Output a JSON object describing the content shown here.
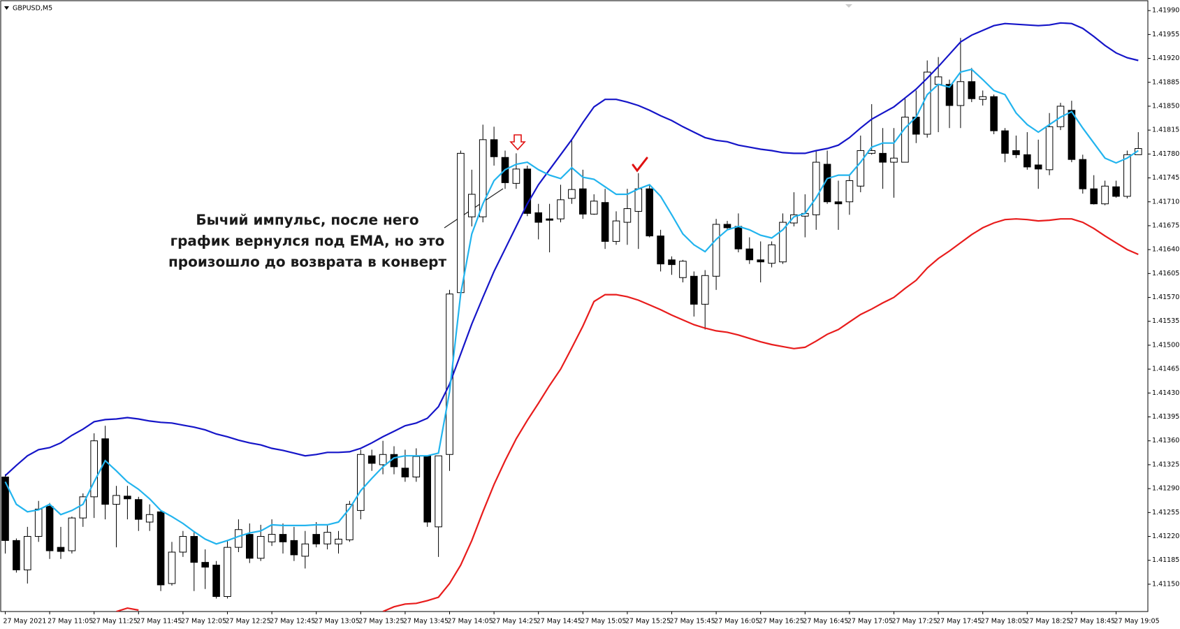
{
  "chart_data": {
    "type": "candlestick",
    "title": "GBPUSD,M5",
    "annotation": [
      "Бычий импульс, после него",
      "график вернулся под EMA, но это",
      "произошло до возврата в конверт"
    ],
    "up_color": "#ffffff",
    "down_color": "#000000",
    "categories": [
      "27 May 2021",
      null,
      null,
      null,
      "27 May 11:05",
      null,
      null,
      null,
      "27 May 11:25",
      null,
      null,
      null,
      "27 May 11:45",
      null,
      null,
      null,
      "27 May 12:05",
      null,
      null,
      null,
      "27 May 12:25",
      null,
      null,
      null,
      "27 May 12:45",
      null,
      null,
      null,
      "27 May 13:05",
      null,
      null,
      null,
      "27 May 13:25",
      null,
      null,
      null,
      "27 May 13:45",
      null,
      null,
      null,
      "27 May 14:05",
      null,
      null,
      null,
      "27 May 14:25",
      null,
      null,
      null,
      "27 May 14:45",
      null,
      null,
      null,
      "27 May 15:05",
      null,
      null,
      null,
      "27 May 15:25",
      null,
      null,
      null,
      "27 May 15:45",
      null,
      null,
      null,
      "27 May 16:05",
      null,
      null,
      null,
      "27 May 16:25",
      null,
      null,
      null,
      "27 May 16:45",
      null,
      null,
      null,
      "27 May 17:05",
      null,
      null,
      null,
      "27 May 17:25",
      null,
      null,
      null,
      "27 May 17:45",
      null,
      null,
      null,
      "27 May 18:05",
      null,
      null,
      null,
      "27 May 18:25",
      null,
      null,
      null,
      "27 May 18:45",
      null,
      null,
      null,
      "27 May 19:05",
      null,
      null
    ],
    "open": [
      1.41307,
      1.41214,
      1.41171,
      1.4122,
      1.41264,
      1.41204,
      1.41199,
      1.41247,
      1.41278,
      1.41363,
      1.41267,
      1.41279,
      1.41274,
      1.41241,
      1.41256,
      1.41151,
      1.41197,
      1.4122,
      1.41182,
      1.41178,
      1.41132,
      1.41204,
      1.41223,
      1.41188,
      1.41212,
      1.41223,
      1.41214,
      1.41191,
      1.41223,
      1.41209,
      1.41209,
      1.41215,
      1.41258,
      1.41338,
      1.41325,
      1.4134,
      1.4132,
      1.41307,
      1.41338,
      1.41234,
      1.4134,
      1.41577,
      1.41688,
      1.41688,
      1.41801,
      1.41775,
      1.41737,
      1.41758,
      1.41694,
      1.41685,
      1.41685,
      1.41715,
      1.41729,
      1.41692,
      1.41709,
      1.41652,
      1.4168,
      1.41696,
      1.41729,
      1.4166,
      1.41625,
      1.41599,
      1.41601,
      1.4156,
      1.41601,
      1.41677,
      1.41674,
      1.41641,
      1.41625,
      1.4162,
      1.41622,
      1.41679,
      1.41689,
      1.41691,
      1.41765,
      1.4171,
      1.4171,
      1.41733,
      1.41781,
      1.41781,
      1.41768,
      1.41768,
      1.41834,
      1.41809,
      1.41882,
      1.41882,
      1.41851,
      1.41886,
      1.4186,
      1.41864,
      1.41814,
      1.41785,
      1.41779,
      1.41764,
      1.41757,
      1.4182,
      1.41844,
      1.41772,
      1.41729,
      1.41707,
      1.41732,
      1.41718,
      1.41779
    ],
    "high": [
      1.41311,
      1.41217,
      1.41234,
      1.41272,
      1.41269,
      1.41234,
      1.41249,
      1.41283,
      1.41371,
      1.41382,
      1.41294,
      1.41294,
      1.41278,
      1.41267,
      1.41258,
      1.41212,
      1.41228,
      1.41228,
      1.41201,
      1.41184,
      1.41214,
      1.41245,
      1.41239,
      1.41237,
      1.41245,
      1.41239,
      1.41234,
      1.41228,
      1.41241,
      1.41236,
      1.41228,
      1.41272,
      1.41347,
      1.41347,
      1.4136,
      1.41352,
      1.41347,
      1.41349,
      1.41338,
      1.41338,
      1.41581,
      1.41785,
      1.41757,
      1.41823,
      1.4182,
      1.41785,
      1.41781,
      1.41763,
      1.41707,
      1.41707,
      1.41735,
      1.41801,
      1.41757,
      1.41721,
      1.41729,
      1.41696,
      1.41729,
      1.41752,
      1.41735,
      1.41669,
      1.4163,
      1.41625,
      1.41608,
      1.4161,
      1.41685,
      1.41682,
      1.41693,
      1.41658,
      1.41652,
      1.41652,
      1.41693,
      1.41724,
      1.41721,
      1.41785,
      1.41785,
      1.41741,
      1.41749,
      1.41807,
      1.41853,
      1.41818,
      1.41818,
      1.41862,
      1.41873,
      1.41917,
      1.41922,
      1.41889,
      1.4195,
      1.41906,
      1.41873,
      1.41867,
      1.41818,
      1.41807,
      1.41812,
      1.41801,
      1.4184,
      1.41855,
      1.41858,
      1.41779,
      1.41749,
      1.41741,
      1.41741,
      1.41785,
      1.41812
    ],
    "low": [
      1.41195,
      1.41167,
      1.41151,
      1.41212,
      1.41187,
      1.41187,
      1.41195,
      1.41234,
      1.41247,
      1.41245,
      1.41204,
      1.41245,
      1.41228,
      1.41228,
      1.4114,
      1.41148,
      1.4119,
      1.4114,
      1.41143,
      1.41129,
      1.41129,
      1.41197,
      1.41181,
      1.41184,
      1.41206,
      1.41195,
      1.41184,
      1.41173,
      1.41204,
      1.41201,
      1.41195,
      1.41212,
      1.41245,
      1.41316,
      1.41311,
      1.41311,
      1.413,
      1.413,
      1.41234,
      1.4119,
      1.41316,
      1.4157,
      1.41674,
      1.4168,
      1.41763,
      1.41729,
      1.41729,
      1.41689,
      1.41655,
      1.41636,
      1.4168,
      1.41707,
      1.41685,
      1.41691,
      1.41641,
      1.41647,
      1.41647,
      1.41641,
      1.41658,
      1.41608,
      1.41603,
      1.41592,
      1.41542,
      1.41523,
      1.41581,
      1.41669,
      1.41636,
      1.41619,
      1.41592,
      1.41614,
      1.41619,
      1.41674,
      1.41658,
      1.41669,
      1.41707,
      1.41669,
      1.41691,
      1.41724,
      1.41779,
      1.41729,
      1.41716,
      1.41768,
      1.41796,
      1.41804,
      1.41812,
      1.41818,
      1.41818,
      1.41856,
      1.41851,
      1.41809,
      1.41768,
      1.41774,
      1.41757,
      1.41729,
      1.41749,
      1.41815,
      1.41768,
      1.41722,
      1.41706,
      1.41705,
      1.41716,
      1.41715,
      1.41779
    ],
    "close": [
      1.41214,
      1.41171,
      1.4122,
      1.4126,
      1.41199,
      1.41198,
      1.41247,
      1.41278,
      1.4136,
      1.41267,
      1.4128,
      1.41275,
      1.41245,
      1.41252,
      1.41149,
      1.41197,
      1.4122,
      1.41182,
      1.41175,
      1.41132,
      1.41204,
      1.4123,
      1.41188,
      1.4122,
      1.41223,
      1.41212,
      1.41193,
      1.41209,
      1.41209,
      1.41226,
      1.41216,
      1.41267,
      1.4134,
      1.41327,
      1.4134,
      1.41322,
      1.41307,
      1.41337,
      1.41241,
      1.41338,
      1.41575,
      1.41781,
      1.41721,
      1.41801,
      1.41776,
      1.41738,
      1.41758,
      1.41693,
      1.4168,
      1.41683,
      1.41713,
      1.41728,
      1.41692,
      1.41711,
      1.41652,
      1.41682,
      1.417,
      1.41729,
      1.4166,
      1.41619,
      1.41618,
      1.41623,
      1.4156,
      1.41602,
      1.41677,
      1.41672,
      1.41641,
      1.41625,
      1.41622,
      1.41647,
      1.4168,
      1.41691,
      1.41693,
      1.41768,
      1.4171,
      1.41707,
      1.41741,
      1.41785,
      1.41785,
      1.41768,
      1.41774,
      1.41834,
      1.41809,
      1.419,
      1.41893,
      1.41851,
      1.41886,
      1.41861,
      1.41864,
      1.41814,
      1.41781,
      1.41779,
      1.41761,
      1.41758,
      1.4182,
      1.4185,
      1.41772,
      1.41729,
      1.41707,
      1.41733,
      1.41718,
      1.41779,
      1.41788
    ],
    "lines": [
      {
        "color": "#1515c8",
        "values": [
          1.41309,
          1.41324,
          1.41338,
          1.41347,
          1.4135,
          1.41357,
          1.41368,
          1.41377,
          1.41388,
          1.41391,
          1.41392,
          1.41394,
          1.41392,
          1.41389,
          1.41387,
          1.41386,
          1.41383,
          1.4138,
          1.41376,
          1.4137,
          1.41366,
          1.41361,
          1.41357,
          1.41354,
          1.41349,
          1.41346,
          1.41342,
          1.41338,
          1.4134,
          1.41343,
          1.41343,
          1.41344,
          1.41349,
          1.41357,
          1.41366,
          1.41374,
          1.41382,
          1.41386,
          1.41393,
          1.4141,
          1.41443,
          1.41487,
          1.41531,
          1.4157,
          1.41608,
          1.41641,
          1.41674,
          1.41707,
          1.41735,
          1.41757,
          1.41779,
          1.41801,
          1.41826,
          1.41849,
          1.4186,
          1.4186,
          1.41856,
          1.41851,
          1.41844,
          1.41836,
          1.41829,
          1.4182,
          1.41812,
          1.41804,
          1.418,
          1.41798,
          1.41793,
          1.4179,
          1.41787,
          1.41785,
          1.41782,
          1.41781,
          1.41781,
          1.41785,
          1.41788,
          1.41793,
          1.41804,
          1.41818,
          1.41831,
          1.4184,
          1.41849,
          1.41862,
          1.41875,
          1.41891,
          1.41908,
          1.41926,
          1.41944,
          1.41954,
          1.41961,
          1.41968,
          1.41971,
          1.4197,
          1.41969,
          1.41968,
          1.41969,
          1.41972,
          1.41971,
          1.41964,
          1.41952,
          1.41939,
          1.41928,
          1.41921,
          1.41917
        ]
      },
      {
        "color": "#e81c1c",
        "values": [
          null,
          null,
          null,
          null,
          null,
          null,
          null,
          null,
          null,
          null,
          1.4111,
          1.41115,
          1.41112,
          null,
          null,
          null,
          null,
          null,
          null,
          null,
          null,
          null,
          null,
          null,
          null,
          null,
          null,
          null,
          null,
          null,
          null,
          null,
          null,
          null,
          1.4111,
          1.41117,
          1.41121,
          1.41122,
          1.41126,
          1.41131,
          1.41151,
          1.41178,
          1.41214,
          1.41256,
          1.41296,
          1.41331,
          1.41363,
          1.4139,
          1.41415,
          1.41441,
          1.41465,
          1.41496,
          1.41528,
          1.41564,
          1.41574,
          1.41574,
          1.41571,
          1.41566,
          1.41559,
          1.41552,
          1.41544,
          1.41537,
          1.4153,
          1.41525,
          1.41521,
          1.41519,
          1.41515,
          1.4151,
          1.41505,
          1.41501,
          1.41498,
          1.41495,
          1.41497,
          1.41506,
          1.41516,
          1.41523,
          1.41534,
          1.41545,
          1.41553,
          1.41562,
          1.4157,
          1.41583,
          1.41595,
          1.41613,
          1.41627,
          1.41638,
          1.4165,
          1.41662,
          1.41672,
          1.41679,
          1.41684,
          1.41685,
          1.41684,
          1.41682,
          1.41683,
          1.41685,
          1.41685,
          1.4168,
          1.41671,
          1.4166,
          1.4165,
          1.4164,
          1.41633
        ]
      },
      {
        "color": "#22b4ee",
        "values": [
          1.413,
          1.41267,
          1.41256,
          1.41259,
          1.41267,
          1.41252,
          1.41258,
          1.41267,
          1.413,
          1.41331,
          1.41316,
          1.413,
          1.41289,
          1.41275,
          1.41258,
          1.41249,
          1.41239,
          1.41227,
          1.41216,
          1.41209,
          1.41214,
          1.4122,
          1.41225,
          1.41228,
          1.41237,
          1.41236,
          1.41236,
          1.41236,
          1.41237,
          1.41237,
          1.41241,
          1.41261,
          1.41287,
          1.41305,
          1.41322,
          1.41335,
          1.41338,
          1.41338,
          1.41338,
          1.41342,
          1.41432,
          1.41575,
          1.41663,
          1.41707,
          1.41741,
          1.41757,
          1.41765,
          1.41768,
          1.41757,
          1.41749,
          1.41744,
          1.4176,
          1.41746,
          1.41743,
          1.41732,
          1.41721,
          1.41721,
          1.41729,
          1.41735,
          1.41718,
          1.41691,
          1.41663,
          1.41647,
          1.41637,
          1.41655,
          1.41669,
          1.41674,
          1.41669,
          1.41661,
          1.41657,
          1.41669,
          1.41688,
          1.41693,
          1.41716,
          1.41744,
          1.41749,
          1.41749,
          1.41768,
          1.4179,
          1.41796,
          1.41796,
          1.41818,
          1.41834,
          1.41867,
          1.41882,
          1.41878,
          1.419,
          1.41904,
          1.41889,
          1.41873,
          1.41867,
          1.4184,
          1.41823,
          1.41812,
          1.41823,
          1.41834,
          1.41842,
          1.41818,
          1.41796,
          1.41774,
          1.41767,
          1.41774,
          1.41785
        ]
      }
    ],
    "ylim": [
      1.4111,
      1.42
    ],
    "yticks": [
      {
        "value": 1.4199,
        "label": "1.41990"
      },
      1.41955,
      {
        "value": 1.4192,
        "label": "1.41920"
      },
      1.41885,
      {
        "value": 1.4185,
        "label": "1.41850"
      },
      1.41815,
      {
        "value": 1.4178,
        "label": "1.41780"
      },
      1.41745,
      {
        "value": 1.4171,
        "label": "1.41710"
      },
      1.41675,
      {
        "value": 1.4164,
        "label": "1.41640"
      },
      1.41605,
      {
        "value": 1.4157,
        "label": "1.41570"
      },
      1.41535,
      {
        "value": 1.415,
        "label": "1.41500"
      },
      1.41465,
      {
        "value": 1.4143,
        "label": "1.41430"
      },
      1.41395,
      {
        "value": 1.4136,
        "label": "1.41360"
      },
      1.41325,
      {
        "value": 1.4129,
        "label": "1.41290"
      },
      1.41255,
      {
        "value": 1.4122,
        "label": "1.41220"
      },
      1.41185,
      {
        "value": 1.4115,
        "label": "1.41150"
      }
    ]
  }
}
